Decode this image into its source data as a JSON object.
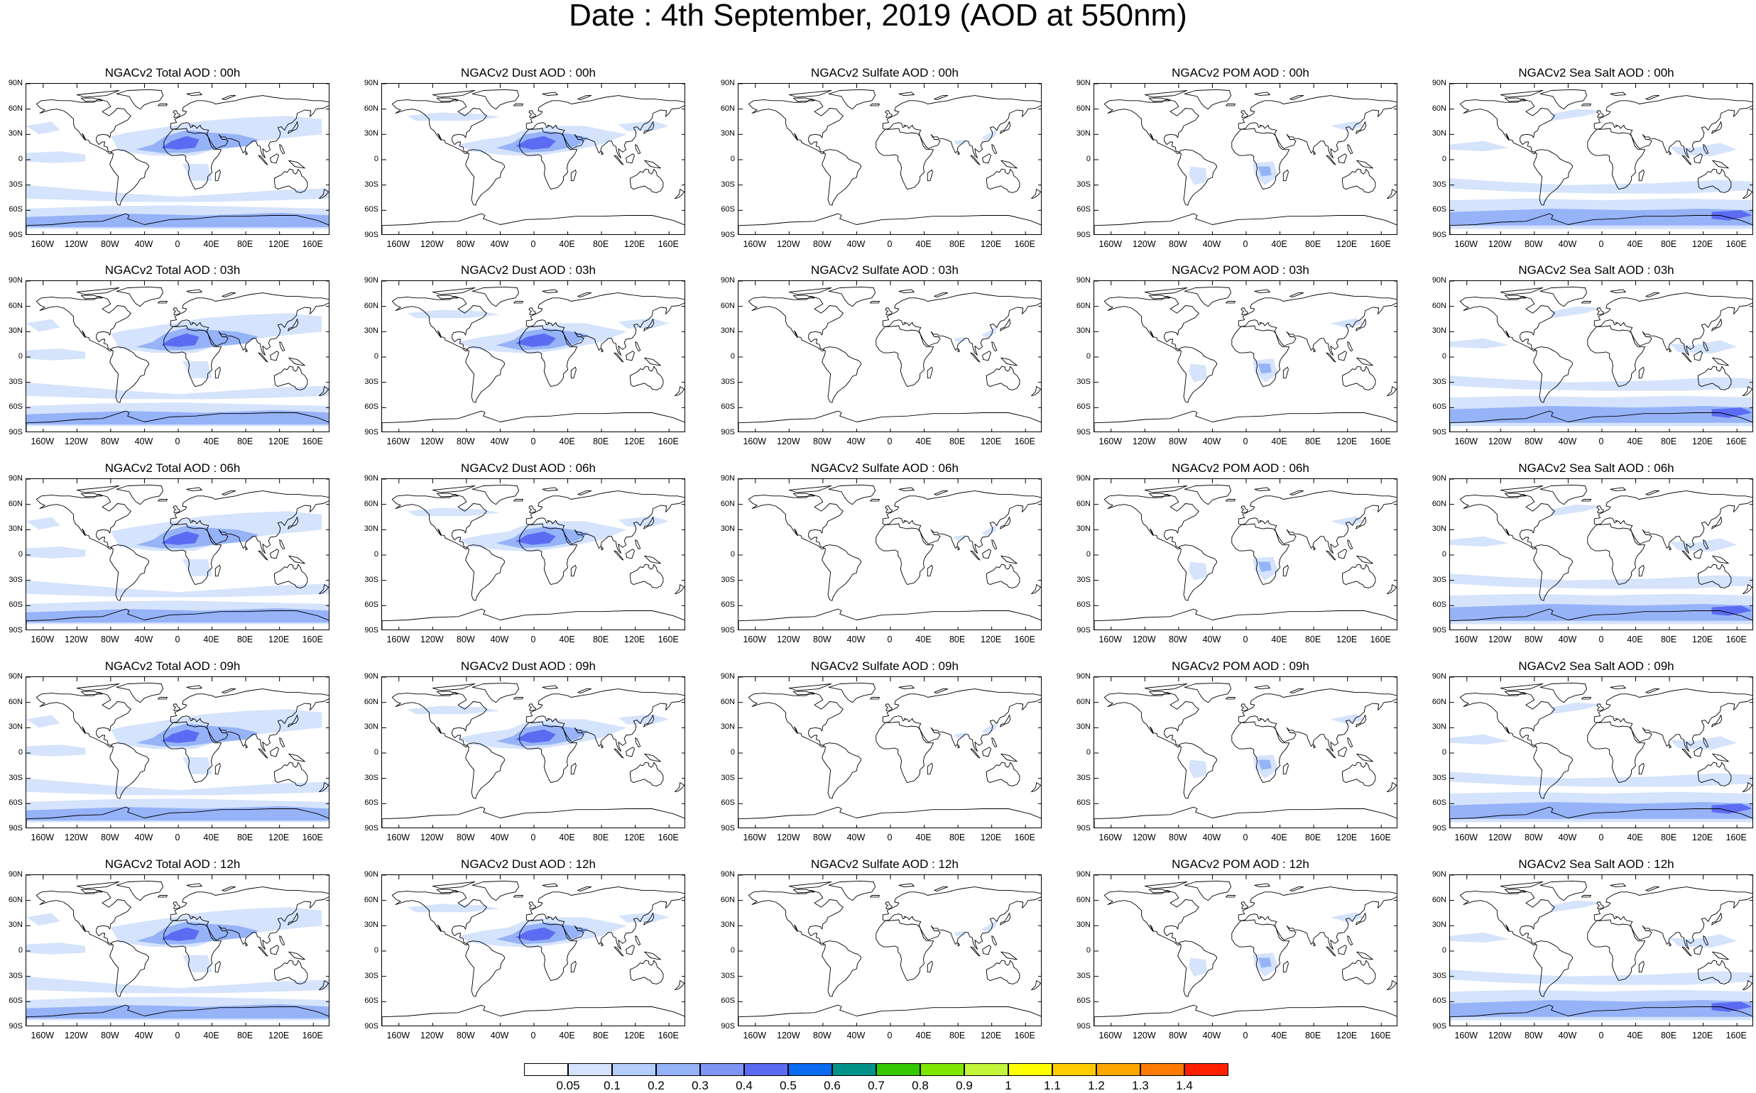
{
  "page": {
    "title": "Date : 4th September, 2019 (AOD at 550nm)"
  },
  "axes": {
    "lat_ticks": [
      "90N",
      "60N",
      "30N",
      "0",
      "30S",
      "60S",
      "90S"
    ],
    "lat_values": [
      90,
      60,
      30,
      0,
      -30,
      -60,
      -90
    ],
    "lon_ticks": [
      "160W",
      "120W",
      "80W",
      "40W",
      "0",
      "40E",
      "80E",
      "120E",
      "160E"
    ],
    "lon_values": [
      -160,
      -120,
      -80,
      -40,
      0,
      40,
      80,
      120,
      160
    ]
  },
  "panels": [
    {
      "title": "NGACv2 Total AOD : 00h",
      "species": "total",
      "hour": 0
    },
    {
      "title": "NGACv2 Dust AOD : 00h",
      "species": "dust",
      "hour": 0
    },
    {
      "title": "NGACv2 Sulfate AOD : 00h",
      "species": "sulfate",
      "hour": 0
    },
    {
      "title": "NGACv2 POM AOD : 00h",
      "species": "pom",
      "hour": 0
    },
    {
      "title": "NGACv2 Sea Salt AOD : 00h",
      "species": "seasalt",
      "hour": 0
    },
    {
      "title": "NGACv2 Total AOD : 03h",
      "species": "total",
      "hour": 3
    },
    {
      "title": "NGACv2 Dust AOD : 03h",
      "species": "dust",
      "hour": 3
    },
    {
      "title": "NGACv2 Sulfate AOD : 03h",
      "species": "sulfate",
      "hour": 3
    },
    {
      "title": "NGACv2 POM AOD : 03h",
      "species": "pom",
      "hour": 3
    },
    {
      "title": "NGACv2 Sea Salt AOD : 03h",
      "species": "seasalt",
      "hour": 3
    },
    {
      "title": "NGACv2 Total AOD : 06h",
      "species": "total",
      "hour": 6
    },
    {
      "title": "NGACv2 Dust AOD : 06h",
      "species": "dust",
      "hour": 6
    },
    {
      "title": "NGACv2 Sulfate AOD : 06h",
      "species": "sulfate",
      "hour": 6
    },
    {
      "title": "NGACv2 POM AOD : 06h",
      "species": "pom",
      "hour": 6
    },
    {
      "title": "NGACv2 Sea Salt AOD : 06h",
      "species": "seasalt",
      "hour": 6
    },
    {
      "title": "NGACv2 Total AOD : 09h",
      "species": "total",
      "hour": 9
    },
    {
      "title": "NGACv2 Dust AOD : 09h",
      "species": "dust",
      "hour": 9
    },
    {
      "title": "NGACv2 Sulfate AOD : 09h",
      "species": "sulfate",
      "hour": 9
    },
    {
      "title": "NGACv2 POM AOD : 09h",
      "species": "pom",
      "hour": 9
    },
    {
      "title": "NGACv2 Sea Salt  AOD : 09h",
      "species": "seasalt",
      "hour": 9
    },
    {
      "title": "NGACv2 Total AOD : 12h",
      "species": "total",
      "hour": 12
    },
    {
      "title": "NGACv2 Dust AOD : 12h",
      "species": "dust",
      "hour": 12
    },
    {
      "title": "NGACv2 Sulfate AOD : 12h",
      "species": "sulfate",
      "hour": 12
    },
    {
      "title": "NGACv2 POM  AOD : 12h",
      "species": "pom",
      "hour": 12
    },
    {
      "title": "NGACv2 Sea Salt  AOD : 12h",
      "species": "seasalt",
      "hour": 12
    }
  ],
  "colorbar": {
    "labels": [
      "0.05",
      "0.1",
      "0.2",
      "0.3",
      "0.4",
      "0.5",
      "0.6",
      "0.7",
      "0.8",
      "0.9",
      "1",
      "1.1",
      "1.2",
      "1.3",
      "1.4"
    ],
    "colors": [
      "#ffffff",
      "#d5e3fc",
      "#b4cdfa",
      "#96b3f8",
      "#7f95f4",
      "#5c6cf2",
      "#0a6af0",
      "#009288",
      "#34c800",
      "#7fe600",
      "#c2f43a",
      "#ffff00",
      "#ffcc00",
      "#ffa600",
      "#ff7a00",
      "#ff2000"
    ]
  },
  "style": {
    "aod_fill_light": "#d5e3fc",
    "aod_fill_mid": "#96b3f8",
    "aod_fill_strong": "#5c6cf2",
    "coast_color": "#000000"
  }
}
